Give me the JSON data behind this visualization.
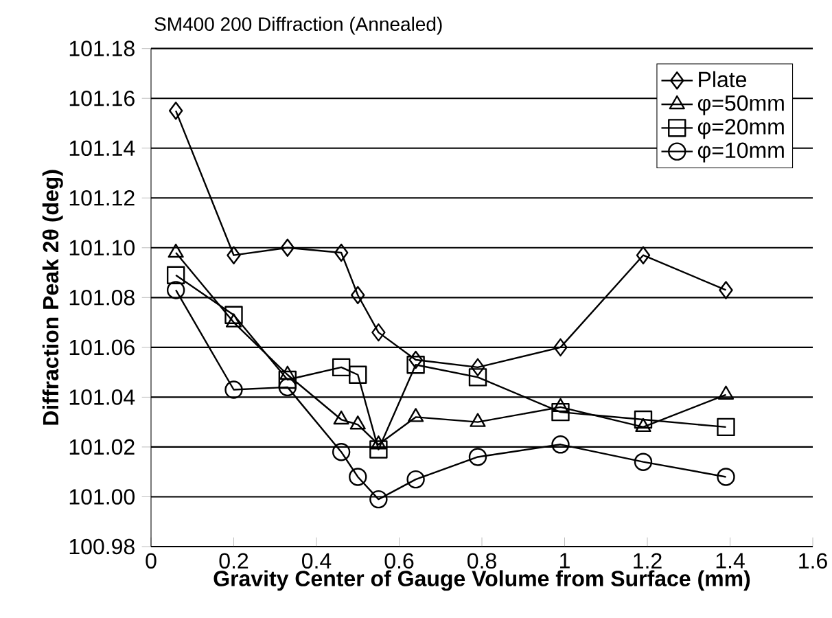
{
  "chart_data": {
    "type": "line",
    "title": "SM400 200 Diffraction (Annealed)",
    "xlabel": "Gravity Center of Gauge Volume from Surface (mm)",
    "ylabel": "Diffraction Peak 2θ (deg)",
    "x": [
      0.06,
      0.2,
      0.33,
      0.46,
      0.5,
      0.55,
      0.64,
      0.79,
      0.99,
      1.19,
      1.39
    ],
    "series": [
      {
        "name": "Plate",
        "color": "#000000",
        "marker": "diamond",
        "values": [
          101.155,
          101.097,
          101.1,
          101.098,
          101.081,
          101.066,
          101.055,
          101.052,
          101.06,
          101.097,
          101.083
        ]
      },
      {
        "name": "φ=50mm",
        "color": "#000000",
        "marker": "triangle",
        "values": [
          101.098,
          101.07,
          101.049,
          101.031,
          101.029,
          101.021,
          101.032,
          101.03,
          101.036,
          101.028,
          101.041
        ]
      },
      {
        "name": "φ=20mm",
        "color": "#000000",
        "marker": "square",
        "values": [
          101.089,
          101.073,
          101.047,
          101.052,
          101.049,
          101.019,
          101.053,
          101.048,
          101.034,
          101.031,
          101.028
        ]
      },
      {
        "name": "φ=10mm",
        "color": "#000000",
        "marker": "circle",
        "values": [
          101.083,
          101.043,
          101.044,
          101.018,
          101.008,
          100.999,
          101.007,
          101.016,
          101.021,
          101.014,
          101.008
        ]
      }
    ],
    "xlim": [
      0,
      1.6
    ],
    "xticks": [
      0,
      0.2,
      0.4,
      0.6,
      0.8,
      1,
      1.2,
      1.4,
      1.6
    ],
    "ylim": [
      100.98,
      101.18
    ],
    "yticks": [
      {
        "value": 100.98,
        "label": "100.98"
      },
      {
        "value": 101.0,
        "label": "101.00"
      },
      {
        "value": 101.02,
        "label": "101.02"
      },
      {
        "value": 101.04,
        "label": "101.04"
      },
      {
        "value": 101.06,
        "label": "101.06"
      },
      {
        "value": 101.08,
        "label": "101.08"
      },
      {
        "value": 101.1,
        "label": "101.10"
      },
      {
        "value": 101.12,
        "label": "101.12"
      },
      {
        "value": 101.14,
        "label": "101.14"
      },
      {
        "value": 101.16,
        "label": "101.16"
      },
      {
        "value": 101.18,
        "label": "101.18"
      }
    ],
    "grid": "y",
    "legend": "top right",
    "line_style": "solid"
  }
}
